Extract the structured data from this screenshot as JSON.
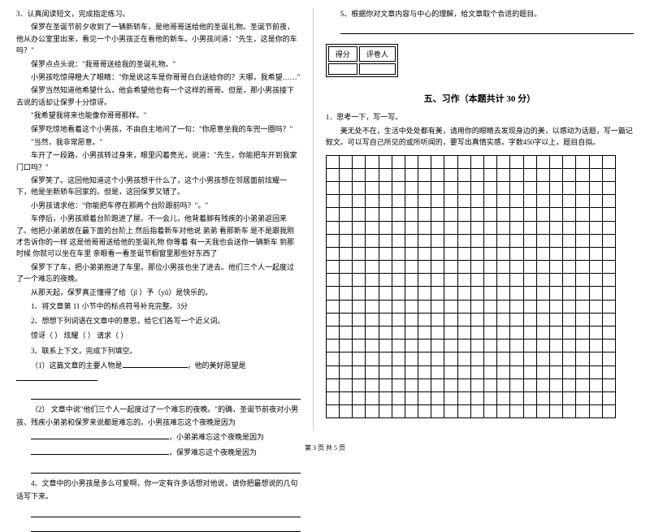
{
  "leftColumn": {
    "q3_title": "3．认真阅读短文，完成指定练习。",
    "story": {
      "p1": "保罗在圣诞节前夕收到了一辆新轿车，是他哥哥送给他的圣诞礼物。圣诞节前夜，他从办公室里出来，看见一个小男孩正在看他的新车。小男孩问道：\"先生，这是你的车吗？\"",
      "p2": "保罗点点头说：\"我哥哥送给我的圣诞礼物。\"",
      "p3": "小男孩吃惊得瞪大了眼睛：\"你是说这车是你哥哥白白送给你的？天哪，我希望……\"",
      "p4": "保罗当然知道他希望什么，他会希望他也有一个这样的哥哥。但是，那小男孩接下去说的话却让保罗十分惊讶。",
      "p5": "\"我希望我将来也能像你哥哥那样。\"",
      "p6": "保罗吃惊地看着这个小男孩，不由自主地问了一句：\"你愿意坐我的车兜一圈吗？\"",
      "p7": "\"当然，我非常愿意。\"",
      "p8": "车开了一段路，小男孩转过身来，眼里闪着亮光，说道：\"先生，你能把车开到我家门口吗？\"",
      "p9": "保罗笑了。这回他知道这个小男孩想干什么了，这个小男孩想在邻居面前炫耀一下，他是坐新轿车回家的。但是，这回保罗又错了。",
      "p10": "小男孩请求他：\"你能把车停在那两个台阶跟前吗？\"。\"",
      "p11": "车停后，小男孩顺着台阶跑进了屋。不一会儿，他背着脚有残疾的小弟弟返回来了。他把小弟弟放在最下面的台阶上  然后指着新车对他说  弟弟  看那新车  是不是跟我刚才告诉你的一样  这是他哥哥送给他的圣诞礼物  你等着  有一天我也会送你一辆新车  到那时候  你就可以坐在车里  亲眼看一看圣诞节橱窗里那些好东西了",
      "p12": "保罗下了车，把小弟弟抱进了车里。那位小男孩也坐了进去。他们三个人一起度过了一个难忘的夜晚。",
      "p13": "从那天起，保罗真正懂得了给（jǐ ）予（yǔ）是快乐的。"
    },
    "subQuestions": {
      "sq1": "1、将文章第  11  小节中的标点符号补充完整。3分",
      "sq2": "2、想想下列词语在文章中的意思，给它们各写一个近义词。",
      "sq2_blanks": "惊讶（      ）     炫耀（      ）     请求（      ）",
      "sq3": "3、联系上下文，完成下列填空。",
      "sq3_q1_prefix": "（1）这篇文章的主要人物是",
      "sq3_q1_suffix": "，他的美好愿望是",
      "sq3_q2": "（2） 文章中说\"他们三个人一起度过了一个难忘的夜晚。\"的确，圣诞节前夜对小男孩、残疾小弟弟和保罗来说都是难忘的。小男孩难忘这个夜晚是因为",
      "sq3_q2_cont1": "，小弟弟难忘这个夜晚是因为",
      "sq3_q2_cont2": "，保罗难忘这个夜晚是因为",
      "sq4": "4、文章中的小男孩是多么可爱啊，你一定有许多话想对他说，请你把最想说的几句话写下来。"
    }
  },
  "rightColumn": {
    "q5": "5、根据你对文章内容与中心的理解，给文章取个合适的题目。",
    "scoreBox": {
      "label1": "得分",
      "label2": "评卷人"
    },
    "sectionTitle": "五、习作（本题共计 30 分）",
    "writing": {
      "q1_title": "1．思考一下，写一写。",
      "q1_body": "美无处不在，生活中处处都有美，请用你的眼睛去发现身边的美，以感动为话题，写一篇记叙文。可以写自己所见的或所听闻的，要写出真情实感，字数450字以上，题目自拟。"
    },
    "gridRows": 20,
    "gridCols": 22
  },
  "footer": "第 3 页  共 5 页",
  "colors": {
    "text": "#000000",
    "border": "#000000",
    "divider": "#cccccc",
    "background": "#ffffff"
  }
}
